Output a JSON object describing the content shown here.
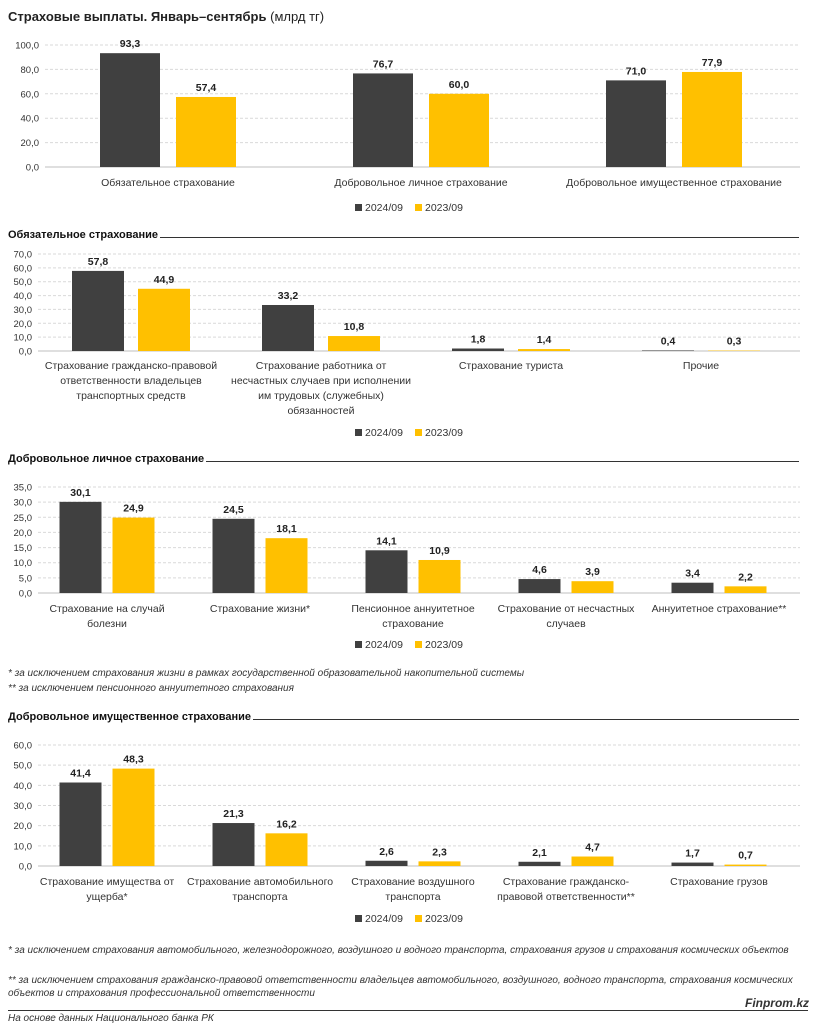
{
  "header": {
    "title_bold": "Страховые выплаты. Январь–сентябрь",
    "title_unit": "(млрд тг)"
  },
  "colors": {
    "series_2024": "#404040",
    "series_2023": "#FFC000",
    "grid": "#d9d9d9"
  },
  "legend": {
    "s1": "2024/09",
    "s2": "2023/09"
  },
  "sections": {
    "mandatory": {
      "title": "Обязательное страхование"
    },
    "voluntary_personal": {
      "title": "Добровольное личное страхование"
    },
    "voluntary_property": {
      "title": "Добровольное имущественное страхование"
    }
  },
  "notes": {
    "personal_1": "* за исключением страхования жизни в рамках государственной образовательной накопительной системы",
    "personal_2": "** за исключением пенсионного аннуитетного страхования",
    "property_1": "* за исключением страхования автомобильного, железнодорожного, воздушного и водного транспорта, страхования грузов и страхования космических объектов",
    "property_2": "** за исключением страхования гражданско-правовой ответственности владельцев автомобильного, воздушного, водного транспорта, страхования космических объектов и страхования профессиональной ответственности"
  },
  "footer": {
    "brand": "Finprom.kz",
    "source": "На основе данных Национального банка РК"
  },
  "chart_data": [
    {
      "type": "bar",
      "title": "Страховые выплаты. Январь–сентябрь (млрд тг)",
      "categories": [
        [
          "Обязательное страхование"
        ],
        [
          "Добровольное личное страхование"
        ],
        [
          "Добровольное имущественное страхование"
        ]
      ],
      "series": [
        {
          "name": "2024/09",
          "values": [
            93.3,
            76.7,
            71.0
          ]
        },
        {
          "name": "2023/09",
          "values": [
            57.4,
            60.0,
            77.9
          ]
        }
      ],
      "ylim": [
        0,
        100
      ],
      "yticks": [
        "0,0",
        "20,0",
        "40,0",
        "60,0",
        "80,0",
        "100,0"
      ],
      "grid": true,
      "legend": "bottom"
    },
    {
      "type": "bar",
      "title": "Обязательное страхование",
      "categories": [
        [
          "Страхование гражданско-правовой",
          "ответственности владельцев",
          "транспортных средств"
        ],
        [
          "Страхование работника от",
          "несчастных случаев при исполнении",
          "им трудовых (служебных)",
          "обязанностей"
        ],
        [
          "Страхование туриста"
        ],
        [
          "Прочие"
        ]
      ],
      "series": [
        {
          "name": "2024/09",
          "values": [
            57.8,
            33.2,
            1.8,
            0.4
          ]
        },
        {
          "name": "2023/09",
          "values": [
            44.9,
            10.8,
            1.4,
            0.3
          ]
        }
      ],
      "ylim": [
        0,
        70
      ],
      "yticks": [
        "0,0",
        "10,0",
        "20,0",
        "30,0",
        "40,0",
        "50,0",
        "60,0",
        "70,0"
      ],
      "grid": true,
      "legend": "bottom"
    },
    {
      "type": "bar",
      "title": "Добровольное личное страхование",
      "categories": [
        [
          "Страхование на случай",
          "болезни"
        ],
        [
          "Страхование жизни*"
        ],
        [
          "Пенсионное аннуитетное",
          "страхование"
        ],
        [
          "Страхование от несчастных",
          "случаев"
        ],
        [
          "Аннуитетное страхование**"
        ]
      ],
      "series": [
        {
          "name": "2024/09",
          "values": [
            30.1,
            24.5,
            14.1,
            4.6,
            3.4
          ]
        },
        {
          "name": "2023/09",
          "values": [
            24.9,
            18.1,
            10.9,
            3.9,
            2.2
          ]
        }
      ],
      "ylim": [
        0,
        35
      ],
      "yticks": [
        "0,0",
        "5,0",
        "10,0",
        "15,0",
        "20,0",
        "25,0",
        "30,0",
        "35,0"
      ],
      "grid": true,
      "legend": "bottom"
    },
    {
      "type": "bar",
      "title": "Добровольное имущественное страхование",
      "categories": [
        [
          "Страхование имущества от",
          "ущерба*"
        ],
        [
          "Страхование автомобильного",
          "транспорта"
        ],
        [
          "Страхование воздушного",
          "транспорта"
        ],
        [
          "Страхование гражданско-",
          "правовой ответственности**"
        ],
        [
          "Страхование грузов"
        ]
      ],
      "series": [
        {
          "name": "2024/09",
          "values": [
            41.4,
            21.3,
            2.6,
            2.1,
            1.7
          ]
        },
        {
          "name": "2023/09",
          "values": [
            48.3,
            16.2,
            2.3,
            4.7,
            0.7
          ]
        }
      ],
      "ylim": [
        0,
        60
      ],
      "yticks": [
        "0,0",
        "10,0",
        "20,0",
        "30,0",
        "40,0",
        "50,0",
        "60,0"
      ],
      "grid": true,
      "legend": "bottom"
    }
  ]
}
